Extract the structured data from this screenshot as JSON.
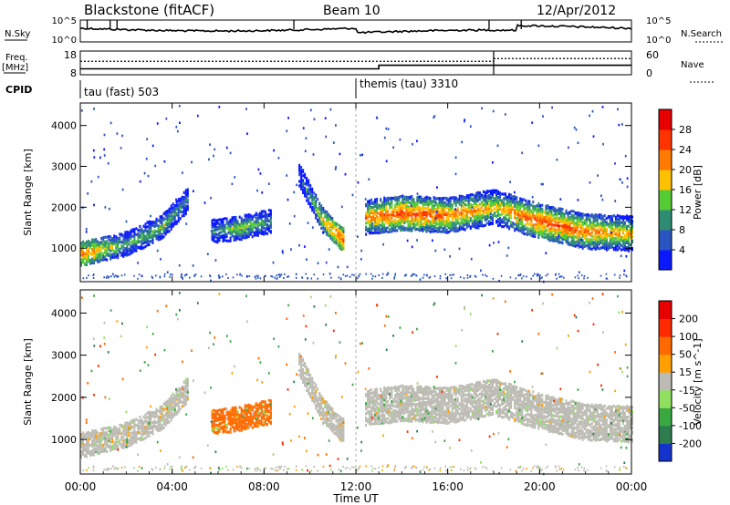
{
  "header": {
    "station": "Blackstone (fitACF)",
    "beam": "Beam 10",
    "date": "12/Apr/2012"
  },
  "sky_panel": {
    "left_label": "N.Sky",
    "right_label": "N.Search",
    "tick_top": "10^5",
    "tick_bottom": "10^0"
  },
  "freq_panel": {
    "left_label_line1": "Freq.",
    "left_label_line2": "[MHz]",
    "right_label": "Nave",
    "left_ticks": [
      "18",
      "8"
    ],
    "right_ticks": [
      "60",
      "0"
    ]
  },
  "cpid": {
    "label": "CPID",
    "segments": [
      {
        "text": "tau (fast) 503"
      },
      {
        "text": "themis (tau) 3310"
      }
    ]
  },
  "x_axis": {
    "label": "Time UT",
    "ticks": [
      "00:00",
      "04:00",
      "08:00",
      "12:00",
      "16:00",
      "20:00",
      "00:00"
    ]
  },
  "power_panel": {
    "ylabel": "Slant Range [km]",
    "yticks": [
      "1000",
      "2000",
      "3000",
      "4000"
    ],
    "colorbar_label": "Power [dB]",
    "colorbar_ticks": [
      "4",
      "8",
      "12",
      "16",
      "20",
      "24",
      "28"
    ],
    "colors": [
      "#0a19ff",
      "#2a55c0",
      "#2e8c73",
      "#55cc33",
      "#ffc000",
      "#ff7a00",
      "#ff3300",
      "#e60000"
    ]
  },
  "velocity_panel": {
    "ylabel": "Slant Range [km]",
    "yticks": [
      "1000",
      "2000",
      "3000",
      "4000"
    ],
    "colorbar_label": "Velocity [m s^-1]",
    "colorbar_ticks": [
      "200",
      "100",
      "50",
      "15",
      "-15",
      "-50",
      "-100",
      "-200"
    ],
    "colors": [
      "#1433cc",
      "#2e7d4f",
      "#3aa840",
      "#90e060",
      "#bcbcb4",
      "#ffa000",
      "#ff6a00",
      "#ff2a00",
      "#e60000"
    ]
  },
  "chart_data": {
    "type": "heatmap",
    "x_range_hours": [
      0,
      24
    ],
    "y_range_km": [
      180,
      4550
    ],
    "cpid_change_hour": 12,
    "frequency_mhz": [
      {
        "from": 0,
        "to": 13,
        "value": 10.5
      },
      {
        "from": 13,
        "to": 24,
        "value": 12
      }
    ],
    "nave": [
      {
        "from": 0,
        "to": 18,
        "value": 34
      },
      {
        "from": 18,
        "to": 24,
        "value": 41
      }
    ],
    "scatter_bands": [
      {
        "name": "band-a",
        "t": [
          0,
          2,
          3.5,
          4.7
        ],
        "range": [
          850,
          1100,
          1500,
          2200
        ],
        "power": [
          24,
          12,
          14,
          8
        ],
        "velocity": -5
      },
      {
        "name": "band-b",
        "t": [
          5.7,
          7,
          8.3
        ],
        "range": [
          1400,
          1500,
          1650
        ],
        "power": [
          10,
          16,
          10
        ],
        "velocity": -60
      },
      {
        "name": "band-c",
        "t": [
          9.5,
          10.5,
          11.5
        ],
        "range": [
          2800,
          1700,
          1150
        ],
        "power": [
          6,
          18,
          26
        ],
        "velocity": -5
      },
      {
        "name": "band-d",
        "t": [
          12.4,
          14,
          16,
          18,
          20,
          22,
          24
        ],
        "range": [
          1750,
          1850,
          1800,
          2000,
          1650,
          1400,
          1350
        ],
        "power": [
          22,
          26,
          24,
          20,
          26,
          24,
          20
        ],
        "velocity": 0
      }
    ]
  }
}
